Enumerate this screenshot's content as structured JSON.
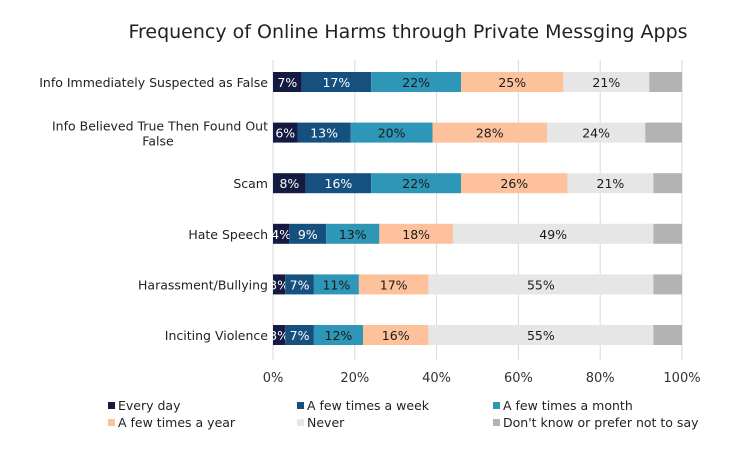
{
  "chart_data": {
    "type": "bar",
    "orientation": "horizontal",
    "stacked": true,
    "title": "Frequency of Online Harms through Private Messging Apps",
    "categories": [
      [
        "Info Immediately Suspected as False"
      ],
      [
        "Info Believed True Then Found Out",
        "False"
      ],
      [
        "Scam"
      ],
      [
        "Hate Speech"
      ],
      [
        "Harassment/Bullying"
      ],
      [
        "Inciting Violence"
      ]
    ],
    "series": [
      {
        "name": "Every day",
        "color": "#141a40",
        "label_color": "#ffffff",
        "values": [
          7,
          6,
          8,
          4,
          3,
          3
        ],
        "labeled": true
      },
      {
        "name": "A few times a week",
        "color": "#16507f",
        "label_color": "#ffffff",
        "values": [
          17,
          13,
          16,
          9,
          7,
          7
        ],
        "labeled": true
      },
      {
        "name": "A few times a month",
        "color": "#2e97b7",
        "label_color": "#1a1a1a",
        "values": [
          22,
          20,
          22,
          13,
          11,
          12
        ],
        "labeled": true
      },
      {
        "name": "A few times a year",
        "color": "#fdc29c",
        "label_color": "#1a1a1a",
        "values": [
          25,
          28,
          26,
          18,
          17,
          16
        ],
        "labeled": true
      },
      {
        "name": "Never",
        "color": "#e6e6e6",
        "label_color": "#1a1a1a",
        "values": [
          21,
          24,
          21,
          49,
          55,
          55
        ],
        "labeled": true
      },
      {
        "name": "Don't know or prefer not to say",
        "color": "#b3b3b3",
        "label_color": "#1a1a1a",
        "values": [
          8,
          9,
          7,
          7,
          7,
          7
        ],
        "labeled": false
      }
    ],
    "xlim": [
      0,
      100
    ],
    "xticks": [
      "0%",
      "20%",
      "40%",
      "60%",
      "80%",
      "100%"
    ],
    "grid": "vertical",
    "legend_position": "bottom"
  }
}
